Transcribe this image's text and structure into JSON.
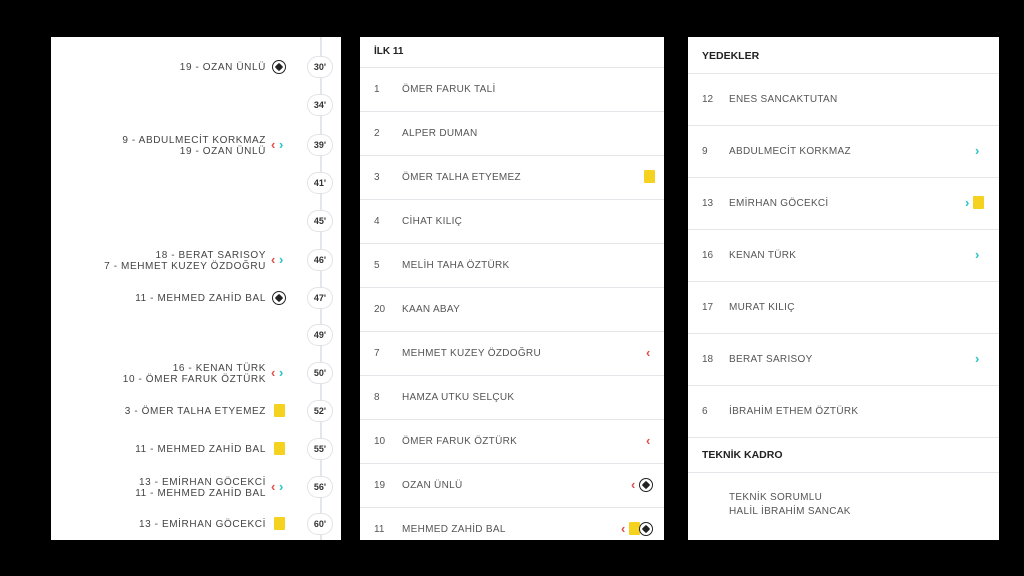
{
  "timeline": {
    "events": [
      {
        "minute": "30'",
        "lines": [
          "19 - OZAN ÜNLÜ"
        ],
        "icon": "goal"
      },
      {
        "minute": "34'",
        "lines": [],
        "icon": ""
      },
      {
        "minute": "39'",
        "lines": [
          "9 - ABDULMECİT KORKMAZ",
          "19 - OZAN ÜNLÜ"
        ],
        "icon": "substitution"
      },
      {
        "minute": "41'",
        "lines": [],
        "icon": ""
      },
      {
        "minute": "45'",
        "lines": [],
        "icon": ""
      },
      {
        "minute": "46'",
        "lines": [
          "18 - BERAT SARISOY",
          "7 - MEHMET KUZEY ÖZDOĞRU"
        ],
        "icon": "substitution"
      },
      {
        "minute": "47'",
        "lines": [
          "11 - MEHMED ZAHİD BAL"
        ],
        "icon": "goal"
      },
      {
        "minute": "49'",
        "lines": [],
        "icon": ""
      },
      {
        "minute": "50'",
        "lines": [
          "16 - KENAN TÜRK",
          "10 - ÖMER FARUK ÖZTÜRK"
        ],
        "icon": "substitution"
      },
      {
        "minute": "52'",
        "lines": [
          "3 - ÖMER TALHA ETYEMEZ"
        ],
        "icon": "yellow-card"
      },
      {
        "minute": "55'",
        "lines": [
          "11 - MEHMED ZAHİD BAL"
        ],
        "icon": "yellow-card"
      },
      {
        "minute": "56'",
        "lines": [
          "13 - EMİRHAN GÖCEKCİ",
          "11 - MEHMED ZAHİD BAL"
        ],
        "icon": "substitution"
      },
      {
        "minute": "60'",
        "lines": [
          "13 - EMİRHAN GÖCEKCİ"
        ],
        "icon": "yellow-card"
      }
    ]
  },
  "lineup": {
    "title": "İLK 11",
    "players": [
      {
        "num": "1",
        "name": "ÖMER FARUK TALİ",
        "icons": []
      },
      {
        "num": "2",
        "name": "ALPER DUMAN",
        "icons": []
      },
      {
        "num": "3",
        "name": "ÖMER TALHA ETYEMEZ",
        "icons": [
          "yellow-card"
        ]
      },
      {
        "num": "4",
        "name": "CİHAT KILIÇ",
        "icons": []
      },
      {
        "num": "5",
        "name": "MELİH TAHA ÖZTÜRK",
        "icons": []
      },
      {
        "num": "20",
        "name": "KAAN ABAY",
        "icons": []
      },
      {
        "num": "7",
        "name": "MEHMET KUZEY ÖZDOĞRU",
        "icons": [
          "sub-out"
        ]
      },
      {
        "num": "8",
        "name": "HAMZA UTKU SELÇUK",
        "icons": []
      },
      {
        "num": "10",
        "name": "ÖMER FARUK ÖZTÜRK",
        "icons": [
          "sub-out"
        ]
      },
      {
        "num": "19",
        "name": "OZAN ÜNLÜ",
        "icons": [
          "sub-out",
          "goal"
        ]
      },
      {
        "num": "11",
        "name": "MEHMED ZAHİD BAL",
        "icons": [
          "sub-out",
          "yellow-card",
          "goal"
        ]
      }
    ]
  },
  "subs": {
    "title": "YEDEKLER",
    "players": [
      {
        "num": "12",
        "name": "ENES SANCAKTUTAN",
        "icons": []
      },
      {
        "num": "9",
        "name": "ABDULMECİT KORKMAZ",
        "icons": [
          "sub-in"
        ]
      },
      {
        "num": "13",
        "name": "EMİRHAN GÖCEKCİ",
        "icons": [
          "sub-in",
          "yellow-card"
        ]
      },
      {
        "num": "16",
        "name": "KENAN TÜRK",
        "icons": [
          "sub-in"
        ]
      },
      {
        "num": "17",
        "name": "MURAT KILIÇ",
        "icons": []
      },
      {
        "num": "18",
        "name": "BERAT SARISOY",
        "icons": [
          "sub-in"
        ]
      },
      {
        "num": "6",
        "name": "İBRAHİM ETHEM ÖZTÜRK",
        "icons": []
      }
    ],
    "staff_title": "TEKNİK KADRO",
    "staff_role": "TEKNİK SORUMLU",
    "staff_name": "HALİL İBRAHİM SANCAK"
  }
}
